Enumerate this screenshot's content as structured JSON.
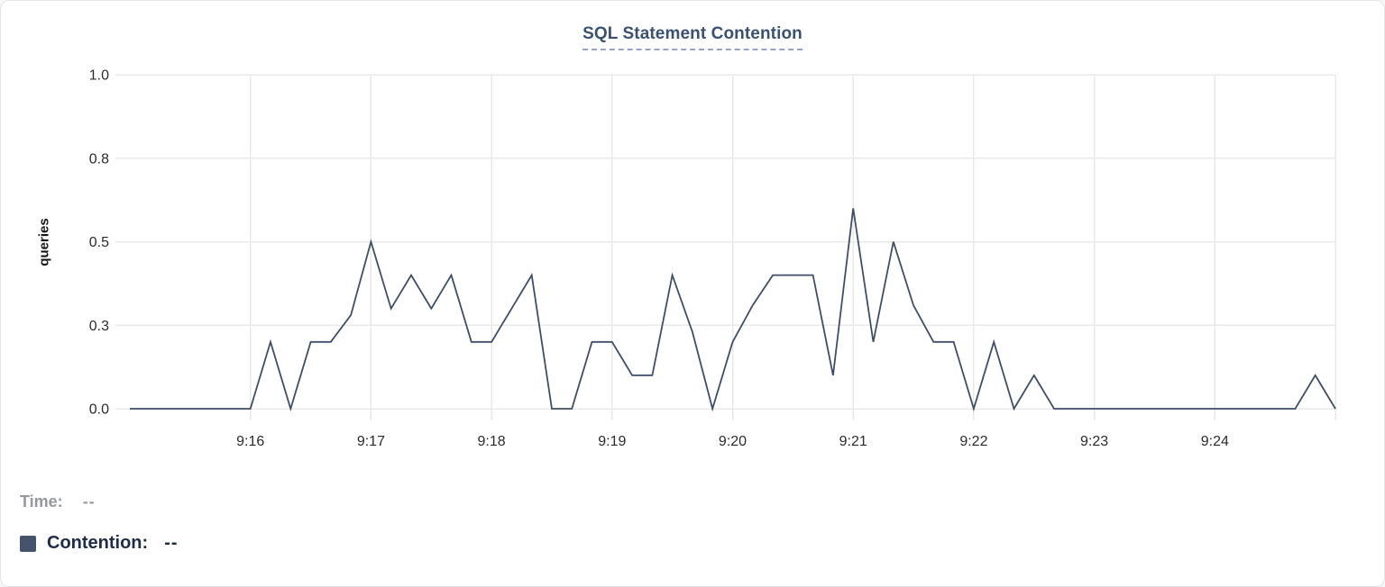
{
  "chart": {
    "title": "SQL Statement Contention",
    "ylabel": "queries"
  },
  "legend": {
    "time_label": "Time:",
    "time_value": "--",
    "series_label": "Contention:",
    "series_value": "--"
  },
  "colors": {
    "series_line": "#3f4e68",
    "legend_swatch": "#46536d",
    "title_text": "#3b5172",
    "title_underline": "#9aa1c6",
    "gridline": "#e9e9e9",
    "tick_text": "#2b2b2b",
    "legend_time_text": "#96989d",
    "legend_contention_text": "#1f2b47"
  },
  "chart_data": {
    "type": "line",
    "title": "SQL Statement Contention",
    "xlabel": "",
    "ylabel": "queries",
    "grid": true,
    "legend_position": "bottom-left",
    "x_start_time": "9:15:00",
    "x_end_time": "9:25:00",
    "point_interval_seconds": 10,
    "x_tick_labels": [
      "9:16",
      "9:17",
      "9:18",
      "9:19",
      "9:20",
      "9:21",
      "9:22",
      "9:23",
      "9:24"
    ],
    "x_tick_seconds": [
      60,
      120,
      180,
      240,
      300,
      360,
      420,
      480,
      540
    ],
    "unlabeled_x_gridline_seconds": [
      600
    ],
    "ylim": [
      0,
      1
    ],
    "y_ticks": [
      {
        "value": 0.0,
        "label": "0.0"
      },
      {
        "value": 0.25,
        "label": "0.3"
      },
      {
        "value": 0.5,
        "label": "0.5"
      },
      {
        "value": 0.75,
        "label": "0.8"
      },
      {
        "value": 1.0,
        "label": "1.0"
      }
    ],
    "series": [
      {
        "name": "Contention",
        "units": "queries",
        "color": "#3f4e68",
        "values": [
          0,
          0,
          0,
          0,
          0,
          0,
          0,
          0.2,
          0,
          0.2,
          0.2,
          0.28,
          0.5,
          0.3,
          0.4,
          0.3,
          0.4,
          0.2,
          0.2,
          0.3,
          0.4,
          0,
          0,
          0.2,
          0.2,
          0.1,
          0.1,
          0.4,
          0.23,
          0,
          0.2,
          0.31,
          0.4,
          0.4,
          0.4,
          0.1,
          0.6,
          0.2,
          0.5,
          0.31,
          0.2,
          0.2,
          0,
          0.2,
          0,
          0.1,
          0,
          0,
          0,
          0,
          0,
          0,
          0,
          0,
          0,
          0,
          0,
          0,
          0,
          0.1,
          0
        ]
      }
    ]
  }
}
